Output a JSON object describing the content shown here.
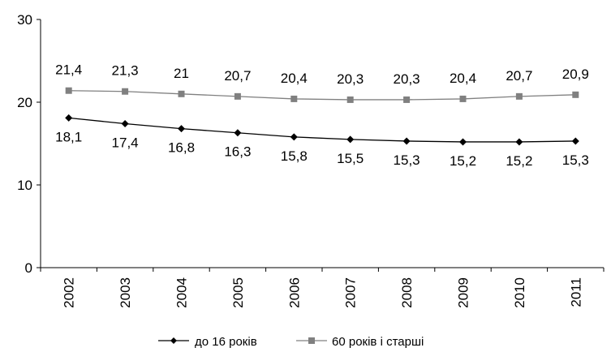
{
  "chart_data": {
    "type": "line",
    "categories": [
      "2002",
      "2003",
      "2004",
      "2005",
      "2006",
      "2007",
      "2008",
      "2009",
      "2010",
      "2011"
    ],
    "series": [
      {
        "name": "до 16 років",
        "values": [
          18.1,
          17.4,
          16.8,
          16.3,
          15.8,
          15.5,
          15.3,
          15.2,
          15.2,
          15.3
        ],
        "value_labels": [
          "18,1",
          "17,4",
          "16,8",
          "16,3",
          "15,8",
          "15,5",
          "15,3",
          "15,2",
          "15,2",
          "15,3"
        ],
        "color": "#000000",
        "marker": "diamond"
      },
      {
        "name": "60 років і старші",
        "values": [
          21.4,
          21.3,
          21.0,
          20.7,
          20.4,
          20.3,
          20.3,
          20.4,
          20.7,
          20.9
        ],
        "value_labels": [
          "21,4",
          "21,3",
          "21",
          "20,7",
          "20,4",
          "20,3",
          "20,3",
          "20,4",
          "20,7",
          "20,9"
        ],
        "color": "#808080",
        "marker": "square"
      }
    ],
    "ylim": [
      0,
      30
    ],
    "yticks": [
      0,
      10,
      20,
      30
    ],
    "grid": false,
    "legend_position": "bottom",
    "title": "",
    "xlabel": "",
    "ylabel": ""
  }
}
